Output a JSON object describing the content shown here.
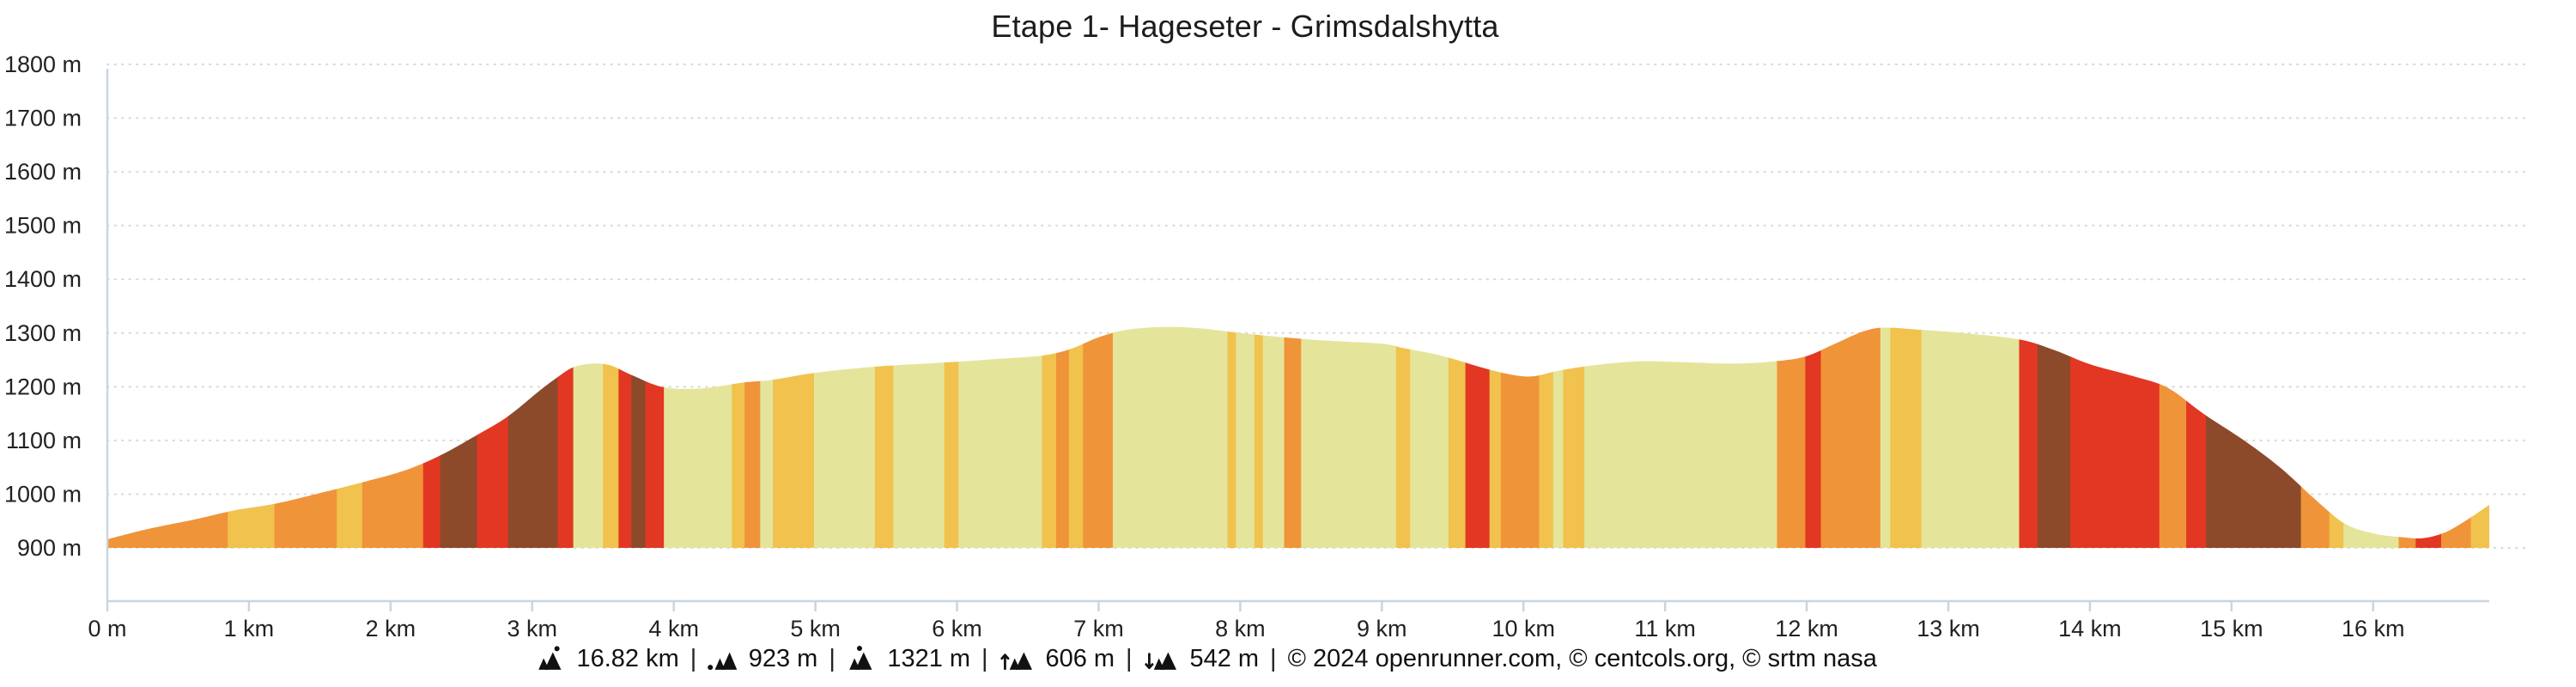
{
  "title": "Etape 1- Hageseter - Grimsdalshytta",
  "footer": {
    "separator": "|",
    "stats": [
      {
        "icon": "distance-mountain-icon",
        "value": "16.82 km"
      },
      {
        "icon": "min-elevation-icon",
        "value": "923 m"
      },
      {
        "icon": "max-elevation-icon",
        "value": "1321 m"
      },
      {
        "icon": "ascent-icon",
        "value": "606 m"
      },
      {
        "icon": "descent-icon",
        "value": "542 m"
      }
    ],
    "copyright": "© 2024 openrunner.com, © centcols.org, © srtm nasa"
  },
  "colors": {
    "axis": "#c9d5e2",
    "grid": "#d9d9d9",
    "text": "#222222"
  },
  "chart_data": {
    "type": "area",
    "title": "Etape 1- Hageseter - Grimsdalshytta",
    "xlabel": "",
    "ylabel": "",
    "x_unit": "km",
    "y_unit": "m",
    "xlim": [
      0,
      16.82
    ],
    "ylim": [
      900,
      1800
    ],
    "grid": "horizontal-dotted",
    "legend_position": "none",
    "y_ticks": [
      {
        "value": 900,
        "label": "900 m"
      },
      {
        "value": 1000,
        "label": "1000 m"
      },
      {
        "value": 1100,
        "label": "1100 m"
      },
      {
        "value": 1200,
        "label": "1200 m"
      },
      {
        "value": 1300,
        "label": "1300 m"
      },
      {
        "value": 1400,
        "label": "1400 m"
      },
      {
        "value": 1500,
        "label": "1500 m"
      },
      {
        "value": 1600,
        "label": "1600 m"
      },
      {
        "value": 1700,
        "label": "1700 m"
      },
      {
        "value": 1800,
        "label": "1800 m"
      }
    ],
    "x_ticks": [
      {
        "value": 0,
        "label": "0 m"
      },
      {
        "value": 1,
        "label": "1 km"
      },
      {
        "value": 2,
        "label": "2 km"
      },
      {
        "value": 3,
        "label": "3 km"
      },
      {
        "value": 4,
        "label": "4 km"
      },
      {
        "value": 5,
        "label": "5 km"
      },
      {
        "value": 6,
        "label": "6 km"
      },
      {
        "value": 7,
        "label": "7 km"
      },
      {
        "value": 8,
        "label": "8 km"
      },
      {
        "value": 9,
        "label": "9 km"
      },
      {
        "value": 10,
        "label": "10 km"
      },
      {
        "value": 11,
        "label": "11 km"
      },
      {
        "value": 12,
        "label": "12 km"
      },
      {
        "value": 13,
        "label": "13 km"
      },
      {
        "value": 14,
        "label": "14 km"
      },
      {
        "value": 15,
        "label": "15 km"
      },
      {
        "value": 16,
        "label": "16 km"
      }
    ],
    "gradient_legend": {
      "flat": "#e4e59b",
      "gentle": "#f1c24d",
      "moderate": "#f0943a",
      "steep": "#e23722",
      "very_steep": "#8c4a2b"
    },
    "profile": [
      [
        0,
        916
      ],
      [
        0.3,
        936
      ],
      [
        0.6,
        952
      ],
      [
        0.9,
        970
      ],
      [
        1.18,
        982
      ],
      [
        1.5,
        1002
      ],
      [
        1.8,
        1022
      ],
      [
        2.1,
        1044
      ],
      [
        2.35,
        1072
      ],
      [
        2.61,
        1110
      ],
      [
        2.83,
        1145
      ],
      [
        3.05,
        1192
      ],
      [
        3.18,
        1218
      ],
      [
        3.29,
        1236
      ],
      [
        3.42,
        1243
      ],
      [
        3.55,
        1240
      ],
      [
        3.7,
        1222
      ],
      [
        3.93,
        1199
      ],
      [
        4.2,
        1197
      ],
      [
        4.5,
        1208
      ],
      [
        4.7,
        1213
      ],
      [
        5.0,
        1226
      ],
      [
        5.4,
        1237
      ],
      [
        5.9,
        1245
      ],
      [
        6.3,
        1252
      ],
      [
        6.6,
        1258
      ],
      [
        6.8,
        1270
      ],
      [
        7.0,
        1292
      ],
      [
        7.2,
        1306
      ],
      [
        7.45,
        1311
      ],
      [
        7.7,
        1309
      ],
      [
        8.0,
        1300
      ],
      [
        8.3,
        1292
      ],
      [
        8.6,
        1286
      ],
      [
        9.0,
        1280
      ],
      [
        9.15,
        1272
      ],
      [
        9.35,
        1262
      ],
      [
        9.5,
        1252
      ],
      [
        9.65,
        1240
      ],
      [
        9.85,
        1226
      ],
      [
        10.05,
        1219
      ],
      [
        10.25,
        1230
      ],
      [
        10.5,
        1240
      ],
      [
        10.8,
        1247
      ],
      [
        11.1,
        1246
      ],
      [
        11.5,
        1243
      ],
      [
        11.8,
        1248
      ],
      [
        12.0,
        1257
      ],
      [
        12.2,
        1280
      ],
      [
        12.4,
        1303
      ],
      [
        12.55,
        1310
      ],
      [
        12.8,
        1306
      ],
      [
        13.1,
        1300
      ],
      [
        13.5,
        1288
      ],
      [
        13.75,
        1268
      ],
      [
        14.0,
        1242
      ],
      [
        14.3,
        1220
      ],
      [
        14.55,
        1198
      ],
      [
        14.8,
        1150
      ],
      [
        15.1,
        1098
      ],
      [
        15.35,
        1048
      ],
      [
        15.6,
        988
      ],
      [
        15.8,
        945
      ],
      [
        16.0,
        927
      ],
      [
        16.2,
        920
      ],
      [
        16.35,
        918
      ],
      [
        16.5,
        928
      ],
      [
        16.65,
        950
      ],
      [
        16.82,
        980
      ]
    ],
    "segments": [
      {
        "from": 0.0,
        "to": 0.85,
        "grade": "moderate"
      },
      {
        "from": 0.85,
        "to": 1.18,
        "grade": "gentle"
      },
      {
        "from": 1.18,
        "to": 1.62,
        "grade": "moderate"
      },
      {
        "from": 1.62,
        "to": 1.8,
        "grade": "gentle"
      },
      {
        "from": 1.8,
        "to": 2.23,
        "grade": "moderate"
      },
      {
        "from": 2.23,
        "to": 2.35,
        "grade": "steep"
      },
      {
        "from": 2.35,
        "to": 2.61,
        "grade": "very_steep"
      },
      {
        "from": 2.61,
        "to": 2.83,
        "grade": "steep"
      },
      {
        "from": 2.83,
        "to": 3.18,
        "grade": "very_steep"
      },
      {
        "from": 3.18,
        "to": 3.29,
        "grade": "steep"
      },
      {
        "from": 3.29,
        "to": 3.5,
        "grade": "flat"
      },
      {
        "from": 3.5,
        "to": 3.61,
        "grade": "gentle"
      },
      {
        "from": 3.61,
        "to": 3.7,
        "grade": "steep"
      },
      {
        "from": 3.7,
        "to": 3.8,
        "grade": "very_steep"
      },
      {
        "from": 3.8,
        "to": 3.93,
        "grade": "steep"
      },
      {
        "from": 3.93,
        "to": 4.41,
        "grade": "flat"
      },
      {
        "from": 4.41,
        "to": 4.5,
        "grade": "gentle"
      },
      {
        "from": 4.5,
        "to": 4.61,
        "grade": "moderate"
      },
      {
        "from": 4.61,
        "to": 4.7,
        "grade": "flat"
      },
      {
        "from": 4.7,
        "to": 4.99,
        "grade": "gentle"
      },
      {
        "from": 4.99,
        "to": 5.42,
        "grade": "flat"
      },
      {
        "from": 5.42,
        "to": 5.55,
        "grade": "gentle"
      },
      {
        "from": 5.55,
        "to": 5.91,
        "grade": "flat"
      },
      {
        "from": 5.91,
        "to": 6.01,
        "grade": "gentle"
      },
      {
        "from": 6.01,
        "to": 6.6,
        "grade": "flat"
      },
      {
        "from": 6.6,
        "to": 6.7,
        "grade": "gentle"
      },
      {
        "from": 6.7,
        "to": 6.79,
        "grade": "moderate"
      },
      {
        "from": 6.79,
        "to": 6.89,
        "grade": "gentle"
      },
      {
        "from": 6.89,
        "to": 7.1,
        "grade": "moderate"
      },
      {
        "from": 7.1,
        "to": 7.91,
        "grade": "flat"
      },
      {
        "from": 7.91,
        "to": 7.97,
        "grade": "gentle"
      },
      {
        "from": 7.97,
        "to": 8.1,
        "grade": "flat"
      },
      {
        "from": 8.1,
        "to": 8.16,
        "grade": "gentle"
      },
      {
        "from": 8.16,
        "to": 8.31,
        "grade": "flat"
      },
      {
        "from": 8.31,
        "to": 8.43,
        "grade": "moderate"
      },
      {
        "from": 8.43,
        "to": 9.1,
        "grade": "flat"
      },
      {
        "from": 9.1,
        "to": 9.2,
        "grade": "gentle"
      },
      {
        "from": 9.2,
        "to": 9.47,
        "grade": "flat"
      },
      {
        "from": 9.47,
        "to": 9.59,
        "grade": "gentle"
      },
      {
        "from": 9.59,
        "to": 9.76,
        "grade": "steep"
      },
      {
        "from": 9.76,
        "to": 9.84,
        "grade": "gentle"
      },
      {
        "from": 9.84,
        "to": 10.11,
        "grade": "moderate"
      },
      {
        "from": 10.11,
        "to": 10.21,
        "grade": "gentle"
      },
      {
        "from": 10.21,
        "to": 10.28,
        "grade": "flat"
      },
      {
        "from": 10.28,
        "to": 10.43,
        "grade": "gentle"
      },
      {
        "from": 10.43,
        "to": 11.79,
        "grade": "flat"
      },
      {
        "from": 11.79,
        "to": 11.99,
        "grade": "moderate"
      },
      {
        "from": 11.99,
        "to": 12.1,
        "grade": "steep"
      },
      {
        "from": 12.1,
        "to": 12.52,
        "grade": "moderate"
      },
      {
        "from": 12.52,
        "to": 12.59,
        "grade": "flat"
      },
      {
        "from": 12.59,
        "to": 12.81,
        "grade": "gentle"
      },
      {
        "from": 12.81,
        "to": 13.5,
        "grade": "flat"
      },
      {
        "from": 13.5,
        "to": 13.63,
        "grade": "steep"
      },
      {
        "from": 13.63,
        "to": 13.86,
        "grade": "very_steep"
      },
      {
        "from": 13.86,
        "to": 14.49,
        "grade": "steep"
      },
      {
        "from": 14.49,
        "to": 14.68,
        "grade": "moderate"
      },
      {
        "from": 14.68,
        "to": 14.82,
        "grade": "steep"
      },
      {
        "from": 14.82,
        "to": 15.49,
        "grade": "very_steep"
      },
      {
        "from": 15.49,
        "to": 15.69,
        "grade": "moderate"
      },
      {
        "from": 15.69,
        "to": 15.79,
        "grade": "gentle"
      },
      {
        "from": 15.79,
        "to": 16.18,
        "grade": "flat"
      },
      {
        "from": 16.18,
        "to": 16.3,
        "grade": "moderate"
      },
      {
        "from": 16.3,
        "to": 16.48,
        "grade": "steep"
      },
      {
        "from": 16.48,
        "to": 16.69,
        "grade": "moderate"
      },
      {
        "from": 16.69,
        "to": 16.82,
        "grade": "gentle"
      }
    ]
  }
}
